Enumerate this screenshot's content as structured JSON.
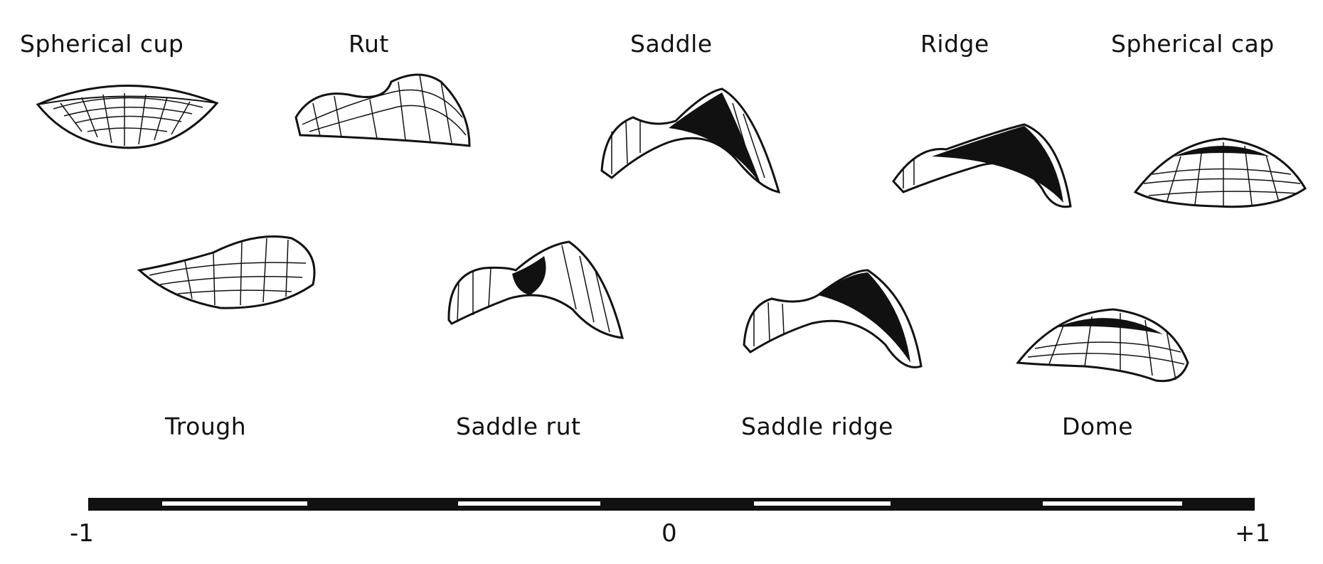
{
  "labels": {
    "spherical_cup": "Spherical cup",
    "rut": "Rut",
    "saddle": "Saddle",
    "ridge": "Ridge",
    "spherical_cap": "Spherical cap",
    "trough": "Trough",
    "saddle_rut": "Saddle rut",
    "saddle_ridge": "Saddle ridge",
    "dome": "Dome"
  },
  "scale": {
    "min": "-1",
    "mid": "0",
    "max": "+1"
  }
}
